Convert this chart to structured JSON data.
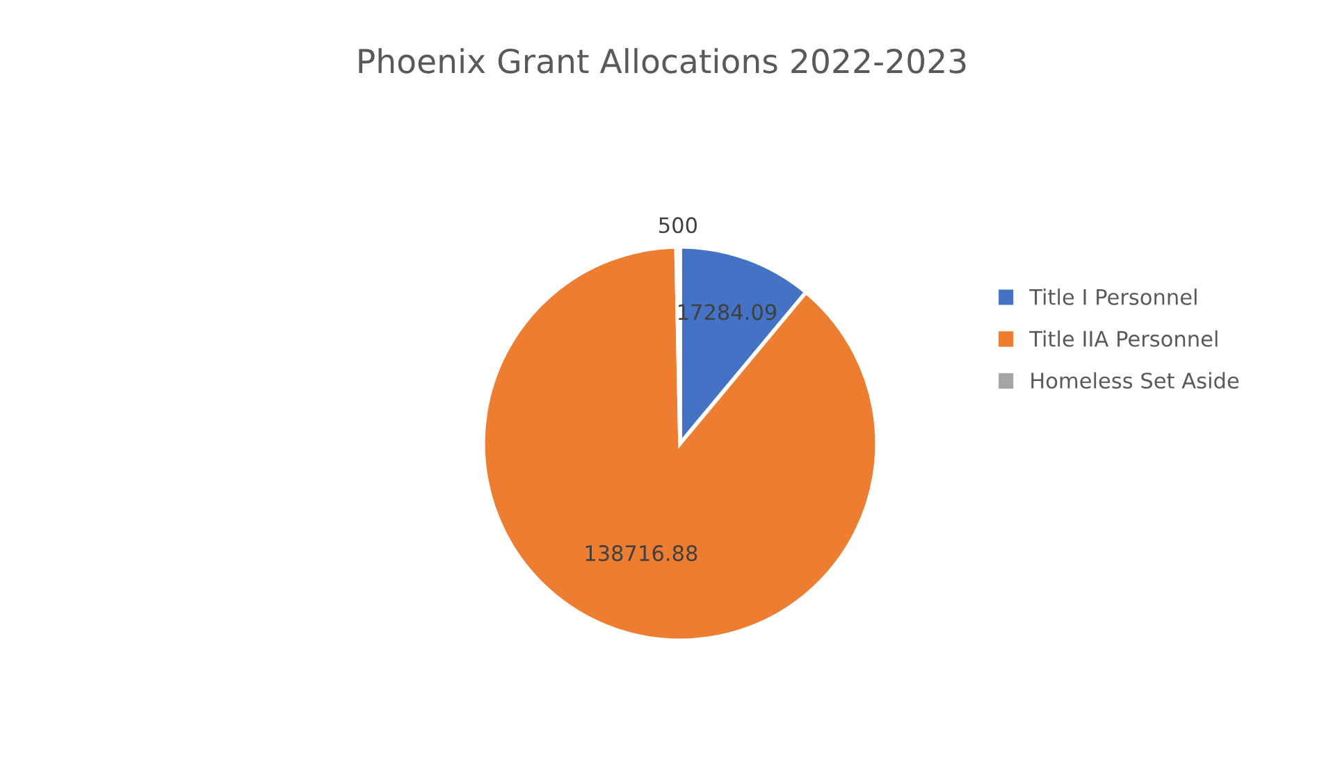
{
  "chart_data": {
    "type": "pie",
    "title": "Phoenix Grant Allocations 2022-2023",
    "categories": [
      "Title I Personnel",
      "Title IIA Personnel",
      "Homeless Set Aside"
    ],
    "values": [
      17284.09,
      138716.88,
      500
    ],
    "colors": [
      "#4472c4",
      "#ed7d31",
      "#a5a5a5"
    ],
    "data_labels": true,
    "legend": "right"
  }
}
